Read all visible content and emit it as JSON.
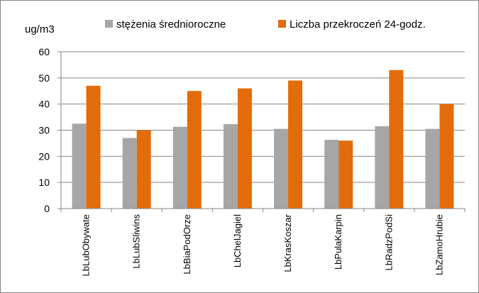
{
  "chart_data": {
    "type": "bar",
    "title": "",
    "ylabel": "ug/m3",
    "xlabel": "",
    "ylim": [
      0,
      60
    ],
    "yticks": [
      0,
      10,
      20,
      30,
      40,
      50,
      60
    ],
    "grid": true,
    "legend_position": "top",
    "categories": [
      "LbLubObywate",
      "LbLubSliwins",
      "LbBiaPodOrze",
      "LbChelJagiel",
      "LbKrasKoszar",
      "LbPulaKarpin",
      "LbRadzPodSi",
      "LbZamoHrubie"
    ],
    "series": [
      {
        "name": "stężenia średnioroczne",
        "color": "#a6a6a6",
        "values": [
          32.5,
          27,
          31.3,
          32.3,
          30.5,
          26.3,
          31.5,
          30.5
        ]
      },
      {
        "name": "Liczba przekroczeń 24-godz.",
        "color": "#e36c0a",
        "values": [
          47,
          30,
          45,
          46,
          49,
          26,
          53,
          40
        ]
      }
    ]
  }
}
